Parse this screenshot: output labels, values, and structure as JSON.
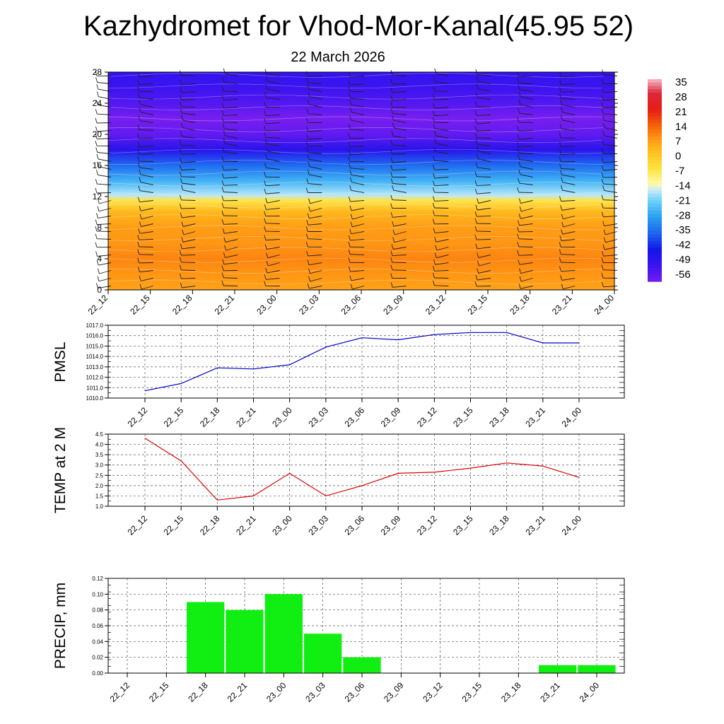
{
  "title": "Kazhydromet for Vhod-Mor-Kanal(45.95 52)",
  "subtitle": "22 March 2026",
  "chart_data": [
    {
      "type": "heatmap",
      "name": "vertical-temperature-wind-section",
      "x_categories": [
        "22_12",
        "22_15",
        "22_18",
        "22_21",
        "23_00",
        "23_03",
        "23_06",
        "23_09",
        "23_12",
        "23_15",
        "23_18",
        "23_21",
        "24_00"
      ],
      "y_ticks": [
        0,
        4,
        8,
        12,
        16,
        20,
        24,
        28
      ],
      "ylim": [
        0,
        28
      ],
      "colorbar_labels": [
        "35",
        "28",
        "21",
        "14",
        "7",
        "0",
        "-7",
        "-14",
        "-21",
        "-28",
        "-35",
        "-42",
        "-49",
        "-56"
      ],
      "colorbar_range": [
        -60,
        38
      ],
      "temperature_profile": [
        {
          "level": 0,
          "value": 8
        },
        {
          "level": 2,
          "value": 10
        },
        {
          "level": 4,
          "value": 12
        },
        {
          "level": 6,
          "value": 10
        },
        {
          "level": 8,
          "value": 9
        },
        {
          "level": 10,
          "value": 5
        },
        {
          "level": 11.5,
          "value": -5
        },
        {
          "level": 12.2,
          "value": -16
        },
        {
          "level": 14,
          "value": -25
        },
        {
          "level": 16,
          "value": -35
        },
        {
          "level": 18,
          "value": -48
        },
        {
          "level": 20,
          "value": -57
        },
        {
          "level": 22,
          "value": -60
        },
        {
          "level": 24,
          "value": -55
        },
        {
          "level": 26,
          "value": -52
        },
        {
          "level": 28,
          "value": -50
        }
      ],
      "colors": {
        "low": "#7a2bf0",
        "mid": "#fff040",
        "high": "#e01010"
      }
    },
    {
      "type": "line",
      "name": "pmsl",
      "ylabel": "PMSL",
      "categories": [
        "22_12",
        "22_15",
        "22_18",
        "22_21",
        "23_00",
        "23_03",
        "23_06",
        "23_09",
        "23_12",
        "23_15",
        "23_18",
        "23_21",
        "24_00"
      ],
      "values": [
        1010.7,
        1011.4,
        1012.9,
        1012.8,
        1013.2,
        1014.9,
        1015.8,
        1015.6,
        1016.1,
        1016.3,
        1016.3,
        1015.3,
        1015.3
      ],
      "ylim": [
        1010.0,
        1017.0
      ],
      "y_ticks": [
        "1010.0",
        "1011.0",
        "1012.0",
        "1013.0",
        "1014.0",
        "1015.0",
        "1016.0",
        "1017.0"
      ],
      "color": "#0000cc"
    },
    {
      "type": "line",
      "name": "temp2m",
      "ylabel": "TEMP at 2 M",
      "categories": [
        "22_12",
        "22_15",
        "22_18",
        "22_21",
        "23_00",
        "23_03",
        "23_06",
        "23_09",
        "23_12",
        "23_15",
        "23_18",
        "23_21",
        "24_00"
      ],
      "values": [
        4.3,
        3.2,
        1.3,
        1.5,
        2.6,
        1.5,
        2.0,
        2.6,
        2.65,
        2.85,
        3.1,
        2.95,
        2.4
      ],
      "ylim": [
        1.0,
        4.5
      ],
      "y_ticks": [
        "1.0",
        "1.5",
        "2.0",
        "2.5",
        "3.0",
        "3.5",
        "4.0",
        "4.5"
      ],
      "color": "#dd0000"
    },
    {
      "type": "bar",
      "name": "precip",
      "ylabel": "PRECIP, mm",
      "categories": [
        "22_12",
        "22_15",
        "22_18",
        "22_21",
        "23_00",
        "23_03",
        "23_06",
        "23_09",
        "23_12",
        "23_15",
        "23_18",
        "23_21",
        "24_00"
      ],
      "values": [
        0,
        0,
        0.09,
        0.08,
        0.1,
        0.05,
        0.02,
        0,
        0,
        0,
        0,
        0.01,
        0.01
      ],
      "ylim": [
        0,
        0.12
      ],
      "y_ticks": [
        "0.00",
        "0.02",
        "0.04",
        "0.06",
        "0.08",
        "0.10",
        "0.12"
      ],
      "color": "#11ee11"
    }
  ]
}
